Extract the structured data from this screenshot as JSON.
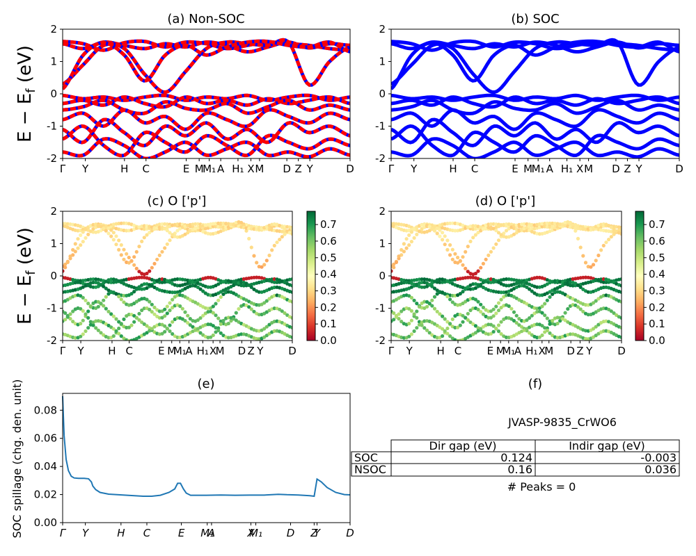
{
  "chart_data": [
    {
      "id": "a",
      "type": "line",
      "title": "(a) Non-SOC",
      "ylabel": "E − E_f (eV)",
      "ylim": [
        -2,
        2
      ],
      "yticks": [
        "-2",
        "-1",
        "0",
        "1",
        "2"
      ],
      "xticks": [
        "Γ",
        "Y",
        "H",
        "C",
        "E",
        "M",
        "M₁",
        "A",
        "H₁",
        "X",
        "M",
        "D",
        "Z",
        "Y",
        "D"
      ],
      "xtick_pos": [
        0,
        0.079,
        0.215,
        0.29,
        0.43,
        0.475,
        0.51,
        0.55,
        0.61,
        0.655,
        0.685,
        0.78,
        0.82,
        0.86,
        1.0
      ],
      "series_colors": [
        "#ff0000",
        "#0000ff"
      ],
      "bands": [
        {
          "ctrl": [
            1.62,
            1.55,
            1.35,
            1.58,
            1.62,
            1.45,
            1.6,
            1.55,
            1.4,
            1.5,
            1.6,
            1.55,
            1.5,
            1.4,
            1.35
          ]
        },
        {
          "ctrl": [
            1.55,
            1.4,
            1.6,
            1.5,
            1.4,
            1.55,
            1.45,
            1.6,
            1.5,
            1.3,
            1.45,
            1.6,
            1.42,
            1.55,
            1.5
          ]
        },
        {
          "ctrl": [
            0.3,
            0.9,
            1.5,
            1.4,
            0.6,
            0.05,
            0.7,
            1.4,
            1.6,
            1.55,
            1.5,
            1.6,
            0.28,
            1.0,
            1.45
          ]
        },
        {
          "ctrl": [
            0.15,
            1.2,
            1.58,
            1.2,
            0.4,
            1.2,
            1.5,
            1.2,
            1.45,
            1.6,
            1.62,
            1.5,
            1.45,
            1.6,
            1.3
          ]
        },
        {
          "ctrl": [
            -0.05,
            -0.15,
            -0.1,
            -0.2,
            -0.1,
            -0.05,
            -0.2,
            -0.1,
            -0.15,
            -0.05,
            -0.2,
            -0.1,
            -0.05,
            -0.2,
            -0.1
          ]
        },
        {
          "ctrl": [
            -0.3,
            -0.2,
            -0.35,
            -0.1,
            -0.3,
            -0.4,
            -0.1,
            -0.3,
            -0.2,
            -0.35,
            -0.15,
            -0.3,
            -0.2,
            -0.1,
            -0.3
          ]
        },
        {
          "ctrl": [
            -0.5,
            -0.4,
            -0.2,
            -0.5,
            -0.6,
            -0.25,
            -0.45,
            -0.5,
            -0.3,
            -0.6,
            -0.4,
            -0.2,
            -0.5,
            -0.35,
            -0.5
          ]
        },
        {
          "ctrl": [
            -0.8,
            -0.6,
            -1.0,
            -0.5,
            -0.9,
            -0.7,
            -1.1,
            -0.6,
            -0.8,
            -1.0,
            -0.5,
            -0.7,
            -0.9,
            -0.6,
            -0.8
          ]
        },
        {
          "ctrl": [
            -1.1,
            -1.5,
            -0.8,
            -1.2,
            -1.6,
            -1.0,
            -1.3,
            -0.9,
            -1.4,
            -1.1,
            -1.5,
            -0.9,
            -1.2,
            -1.0,
            -1.3
          ]
        },
        {
          "ctrl": [
            -1.4,
            -1.0,
            -1.6,
            -1.9,
            -1.2,
            -1.5,
            -1.8,
            -1.3,
            -1.6,
            -1.9,
            -1.3,
            -1.5,
            -1.7,
            -1.4,
            -1.6
          ]
        },
        {
          "ctrl": [
            -1.8,
            -1.9,
            -1.4,
            -1.6,
            -2.0,
            -1.8,
            -1.5,
            -1.9,
            -1.7,
            -1.5,
            -1.9,
            -1.8,
            -1.95,
            -1.7,
            -1.9
          ]
        }
      ]
    },
    {
      "id": "b",
      "type": "line",
      "title": "(b) SOC",
      "ylim": [
        -2,
        2
      ],
      "yticks": [
        "-2",
        "-1",
        "0",
        "1",
        "2"
      ],
      "xticks": [
        "Γ",
        "Y",
        "H",
        "C",
        "E",
        "M",
        "M₁",
        "A",
        "H₁",
        "X",
        "M",
        "D",
        "Z",
        "Y",
        "D"
      ],
      "xtick_pos": [
        0,
        0.079,
        0.215,
        0.29,
        0.43,
        0.475,
        0.51,
        0.55,
        0.61,
        0.655,
        0.685,
        0.78,
        0.82,
        0.86,
        1.0
      ],
      "series_colors": [
        "#0000ff"
      ]
    },
    {
      "id": "c",
      "type": "scatter",
      "title": "(c)  O ['p']",
      "ylabel": "E − E_f (eV)",
      "ylim": [
        -2,
        2
      ],
      "yticks": [
        "-2",
        "-1",
        "0",
        "1",
        "2"
      ],
      "xticks": [
        "Γ",
        "Y",
        "H",
        "C",
        "E",
        "M",
        "M₁",
        "A",
        "H₁",
        "X",
        "M",
        "D",
        "Z",
        "Y",
        "D"
      ],
      "xtick_pos": [
        0,
        0.079,
        0.215,
        0.29,
        0.43,
        0.475,
        0.51,
        0.55,
        0.61,
        0.655,
        0.685,
        0.78,
        0.82,
        0.86,
        1.0
      ],
      "colorbar": {
        "min": 0.0,
        "max": 0.78,
        "ticks": [
          "0.0",
          "0.1",
          "0.2",
          "0.3",
          "0.4",
          "0.5",
          "0.6",
          "0.7"
        ],
        "cmap": "RdYlGn"
      }
    },
    {
      "id": "d",
      "type": "scatter",
      "title": "(d) O ['p']",
      "ylim": [
        -2,
        2
      ],
      "yticks": [
        "-2",
        "-1",
        "0",
        "1",
        "2"
      ],
      "xticks": [
        "Γ",
        "Y",
        "H",
        "C",
        "E",
        "M",
        "M₁",
        "A",
        "H₁",
        "X",
        "M",
        "D",
        "Z",
        "Y",
        "D"
      ],
      "xtick_pos": [
        0,
        0.079,
        0.215,
        0.29,
        0.43,
        0.475,
        0.51,
        0.55,
        0.61,
        0.655,
        0.685,
        0.78,
        0.82,
        0.86,
        1.0
      ],
      "colorbar": {
        "min": 0.0,
        "max": 0.78,
        "ticks": [
          "0.0",
          "0.1",
          "0.2",
          "0.3",
          "0.4",
          "0.5",
          "0.6",
          "0.7"
        ],
        "cmap": "RdYlGn"
      }
    },
    {
      "id": "e",
      "type": "line",
      "title": "(e)",
      "ylabel": "SOC spillage (chg. den. unit)",
      "ylim": [
        0,
        0.092
      ],
      "yticks": [
        "0.00",
        "0.02",
        "0.04",
        "0.06",
        "0.08"
      ],
      "ytick_vals": [
        0,
        0.02,
        0.04,
        0.06,
        0.08
      ],
      "xticks": [
        "Γ",
        "Y",
        "H",
        "C",
        "E",
        "M₁",
        "A",
        "X",
        "M₁",
        "D",
        "Z",
        "Y",
        "D"
      ],
      "xtick_pos": [
        0,
        0.079,
        0.203,
        0.293,
        0.413,
        0.503,
        0.518,
        0.655,
        0.672,
        0.793,
        0.875,
        0.885,
        1.0
      ],
      "series": [
        {
          "color": "#1f77b4",
          "x": [
            0,
            0.005,
            0.012,
            0.02,
            0.03,
            0.04,
            0.055,
            0.075,
            0.09,
            0.1,
            0.105,
            0.115,
            0.13,
            0.16,
            0.2,
            0.24,
            0.28,
            0.31,
            0.34,
            0.37,
            0.39,
            0.4,
            0.41,
            0.42,
            0.43,
            0.445,
            0.47,
            0.5,
            0.55,
            0.6,
            0.65,
            0.7,
            0.75,
            0.78,
            0.82,
            0.86,
            0.875,
            0.885,
            0.9,
            0.92,
            0.95,
            0.98,
            1.0
          ],
          "y": [
            0.09,
            0.062,
            0.045,
            0.037,
            0.033,
            0.0318,
            0.0315,
            0.0315,
            0.0312,
            0.029,
            0.026,
            0.0235,
            0.0215,
            0.0203,
            0.0198,
            0.0193,
            0.0188,
            0.0188,
            0.0195,
            0.0215,
            0.024,
            0.028,
            0.028,
            0.024,
            0.021,
            0.0195,
            0.0195,
            0.0195,
            0.0197,
            0.0195,
            0.0196,
            0.0196,
            0.0202,
            0.0199,
            0.0197,
            0.0192,
            0.0188,
            0.031,
            0.029,
            0.025,
            0.0215,
            0.02,
            0.0198
          ]
        }
      ]
    }
  ],
  "panel_f": {
    "title": "(f)",
    "material": "JVASP-9835_CrWO6",
    "table": {
      "columns": [
        "Dir gap (eV)",
        "Indir gap (eV)"
      ],
      "rows": [
        {
          "label": "SOC",
          "dir": "0.124",
          "indir": "-0.003"
        },
        {
          "label": "NSOC",
          "dir": "0.16",
          "indir": "0.036"
        }
      ]
    },
    "peaks": "# Peaks = 0"
  }
}
